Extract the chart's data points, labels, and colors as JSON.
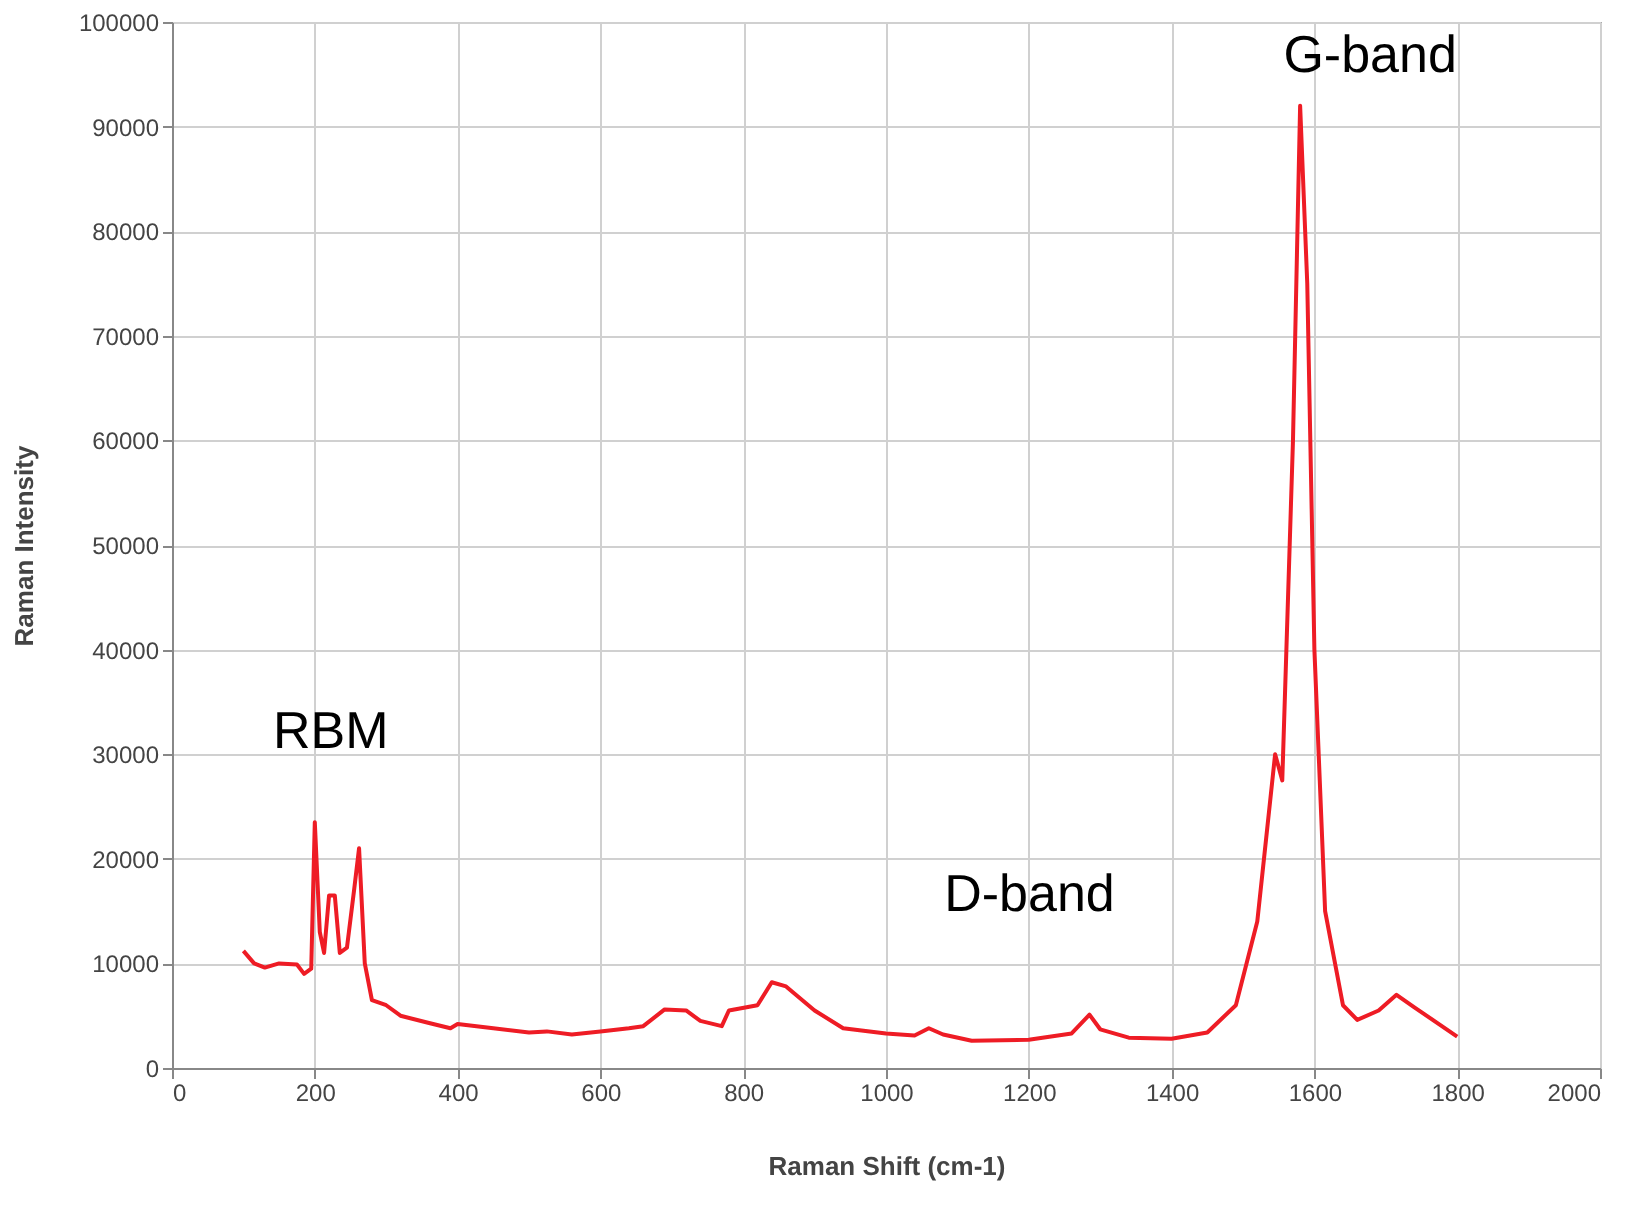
{
  "chart_data": {
    "type": "line",
    "xlabel": "Raman Shift (cm-1)",
    "ylabel": "Raman Intensity",
    "x": [
      100,
      115,
      130,
      150,
      175,
      185,
      195,
      200,
      207,
      213,
      220,
      228,
      235,
      245,
      255,
      262,
      270,
      280,
      300,
      320,
      360,
      390,
      400,
      450,
      500,
      525,
      560,
      600,
      640,
      660,
      690,
      720,
      740,
      770,
      780,
      820,
      840,
      860,
      900,
      940,
      1000,
      1040,
      1060,
      1080,
      1120,
      1200,
      1260,
      1285,
      1300,
      1340,
      1400,
      1450,
      1490,
      1520,
      1545,
      1555,
      1570,
      1580,
      1590,
      1600,
      1615,
      1640,
      1660,
      1690,
      1715,
      1740,
      1800
    ],
    "series": [
      {
        "color": "#ee1c25",
        "values": [
          11200,
          10000,
          9600,
          10000,
          9900,
          9000,
          9500,
          23500,
          13000,
          11000,
          16500,
          16500,
          11000,
          11500,
          17000,
          21000,
          10000,
          6500,
          6000,
          5000,
          4300,
          3800,
          4200,
          3800,
          3400,
          3500,
          3200,
          3500,
          3800,
          4000,
          5600,
          5500,
          4500,
          4000,
          5500,
          6000,
          8200,
          7800,
          5500,
          3800,
          3300,
          3100,
          3800,
          3200,
          2600,
          2700,
          3300,
          5100,
          3700,
          2900,
          2800,
          3400,
          6000,
          14000,
          30000,
          27500,
          60000,
          92000,
          75000,
          40000,
          15000,
          6000,
          4600,
          5500,
          7000,
          5800,
          3000
        ]
      }
    ],
    "xlim": [
      0,
      2000
    ],
    "xticks": [
      0,
      200,
      400,
      600,
      800,
      1000,
      1200,
      1400,
      1600,
      1800,
      2000
    ],
    "ylim": [
      0,
      100000
    ],
    "yticks": [
      0,
      10000,
      20000,
      30000,
      40000,
      50000,
      60000,
      70000,
      80000,
      90000,
      100000
    ],
    "grid": true,
    "line_style": "solid",
    "marker": "none",
    "annotations": [
      {
        "text": "RBM",
        "x": 200,
        "y": 23500
      },
      {
        "text": "D-band",
        "x": 1285,
        "y": 5100
      },
      {
        "text": "G-band",
        "x": 1580,
        "y": 92000
      }
    ]
  }
}
